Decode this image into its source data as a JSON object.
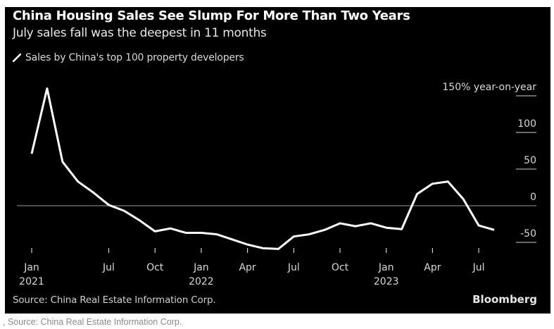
{
  "chart_data": {
    "type": "line",
    "title": "China Housing Sales See Slump For More Than Two Years",
    "subtitle": "July sales fall was the deepest in 11 months",
    "legend": [
      {
        "name": "Sales by China's top 100 property developers",
        "color": "#ffffff"
      }
    ],
    "legend_placement": "top-left",
    "ylabel": "150% year-on-year",
    "ylim": [
      -60,
      160
    ],
    "y_ticks": [
      {
        "value": 150,
        "label": "150% year-on-year"
      },
      {
        "value": 100,
        "label": "100"
      },
      {
        "value": 50,
        "label": "50"
      },
      {
        "value": 0,
        "label": "0"
      },
      {
        "value": -50,
        "label": "-50"
      }
    ],
    "y_axis_side": "right",
    "zero_line": true,
    "grid": false,
    "x_ticks": [
      {
        "label": "Jan",
        "sub": "2021"
      },
      {
        "label": "Jul",
        "sub": ""
      },
      {
        "label": "Oct",
        "sub": ""
      },
      {
        "label": "Jan",
        "sub": "2022"
      },
      {
        "label": "Apr",
        "sub": ""
      },
      {
        "label": "Jul",
        "sub": ""
      },
      {
        "label": "Oct",
        "sub": ""
      },
      {
        "label": "Jan",
        "sub": "2023"
      },
      {
        "label": "Apr",
        "sub": ""
      },
      {
        "label": "Jul",
        "sub": ""
      }
    ],
    "x": [
      "2021-01",
      "2021-02",
      "2021-03",
      "2021-04",
      "2021-05",
      "2021-06",
      "2021-07",
      "2021-08",
      "2021-09",
      "2021-10",
      "2021-11",
      "2021-12",
      "2022-01",
      "2022-02",
      "2022-03",
      "2022-04",
      "2022-05",
      "2022-06",
      "2022-07",
      "2022-08",
      "2022-09",
      "2022-10",
      "2022-11",
      "2022-12",
      "2023-01",
      "2023-02",
      "2023-03",
      "2023-04",
      "2023-05",
      "2023-06",
      "2023-07"
    ],
    "series": [
      {
        "name": "Sales by China's top 100 property developers",
        "color": "#ffffff",
        "values": [
          71,
          160,
          60,
          33,
          18,
          1,
          -7,
          -20,
          -35,
          -31,
          -37,
          -37,
          -39,
          -46,
          -53,
          -58,
          -59,
          -42,
          -39,
          -33,
          -24,
          -28,
          -24,
          -30,
          -32,
          16,
          30,
          33,
          9,
          -27,
          -33
        ]
      }
    ],
    "source": "Source: China Real Estate Information Corp.",
    "logo": "Bloomberg",
    "background": "#000000"
  },
  "caption": ", Source: China Real Estate Information Corp."
}
